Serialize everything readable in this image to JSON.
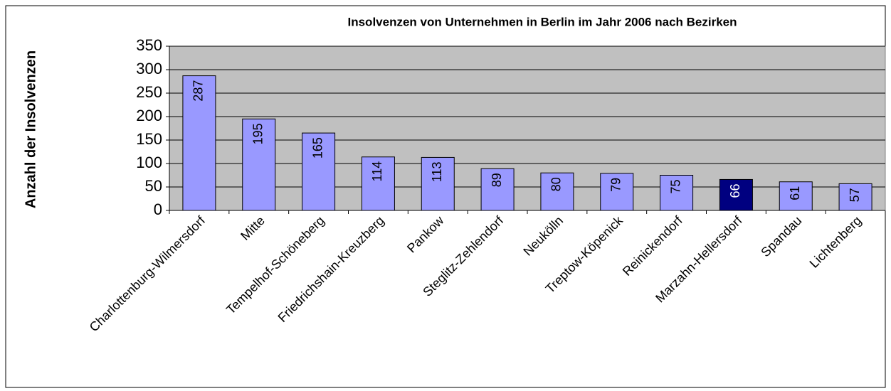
{
  "chart_data": {
    "type": "bar",
    "title": "Insolvenzen von Unternehmen in Berlin im Jahr 2006 nach Bezirken",
    "y_label": "Anzahl der Insolvenzen",
    "categories": [
      "Charlottenburg-Wilmersdorf",
      "Mitte",
      "Tempelhof-Schöneberg",
      "Friedrichshain-Kreuzberg",
      "Pankow",
      "Steglitz-Zehlendorf",
      "Neukölln",
      "Treptow-Köpenick",
      "Reinickendorf",
      "Marzahn-Hellersdorf",
      "Spandau",
      "Lichtenberg"
    ],
    "values": [
      287,
      195,
      165,
      114,
      113,
      89,
      80,
      79,
      75,
      66,
      61,
      57
    ],
    "colors": [
      "#9999ff",
      "#9999ff",
      "#9999ff",
      "#9999ff",
      "#9999ff",
      "#9999ff",
      "#9999ff",
      "#9999ff",
      "#9999ff",
      "#000080",
      "#9999ff",
      "#9999ff"
    ],
    "ylim": [
      0,
      350
    ],
    "yticks": [
      0,
      50,
      100,
      150,
      200,
      250,
      300,
      350
    ],
    "grid": true
  }
}
